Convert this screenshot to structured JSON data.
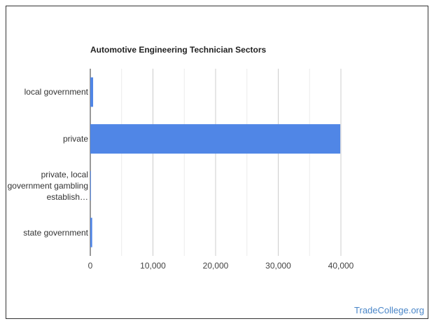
{
  "chart_data": {
    "type": "bar",
    "orientation": "horizontal",
    "title": "Automotive Engineering Technician Sectors",
    "categories": [
      "local government",
      "private",
      "private, local government gambling establish…",
      "state government"
    ],
    "values": [
      450,
      39900,
      100,
      300
    ],
    "color": "#5086e6",
    "xlim": [
      0,
      40000
    ],
    "xticks": [
      0,
      {
        "value": 10000,
        "label": "10,000"
      },
      {
        "value": 20000,
        "label": "20,000"
      },
      {
        "value": 30000,
        "label": "30,000"
      },
      {
        "value": 40000,
        "label": "40,000"
      }
    ],
    "minor_grid": [
      5000,
      15000,
      25000,
      35000
    ],
    "grid": true
  },
  "watermark": "TradeCollege.org"
}
